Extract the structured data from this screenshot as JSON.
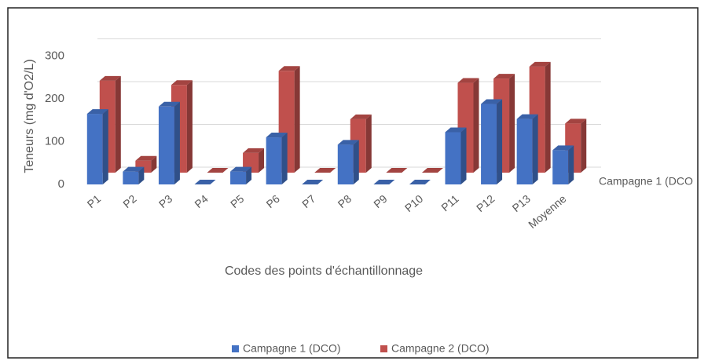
{
  "chart_data": {
    "type": "bar3d",
    "y_label": "Teneurs (mg d'O2/L)",
    "x_label": "Codes des points d'échantillonnage",
    "depth_label": "Campagne 1 (DCO",
    "categories": [
      "P1",
      "P2",
      "P3",
      "P4",
      "P5",
      "P6",
      "P7",
      "P8",
      "P9",
      "P10",
      "P11",
      "P12",
      "P13",
      "Moyenne"
    ],
    "series": [
      {
        "name": "Campagne 1 (DCO)",
        "color": "#4472c4",
        "values": [
          165,
          30,
          182,
          0,
          30,
          110,
          0,
          93,
          0,
          0,
          122,
          188,
          153,
          80
        ]
      },
      {
        "name": "Campagne 2 (DCO)",
        "color": "#c0504d",
        "values": [
          215,
          28,
          205,
          0,
          46,
          238,
          0,
          125,
          0,
          0,
          210,
          220,
          248,
          115
        ]
      }
    ],
    "ylim": [
      0,
      300
    ],
    "yticks": [
      0,
      100,
      200,
      300
    ],
    "grid": true,
    "legend": "bottom"
  }
}
